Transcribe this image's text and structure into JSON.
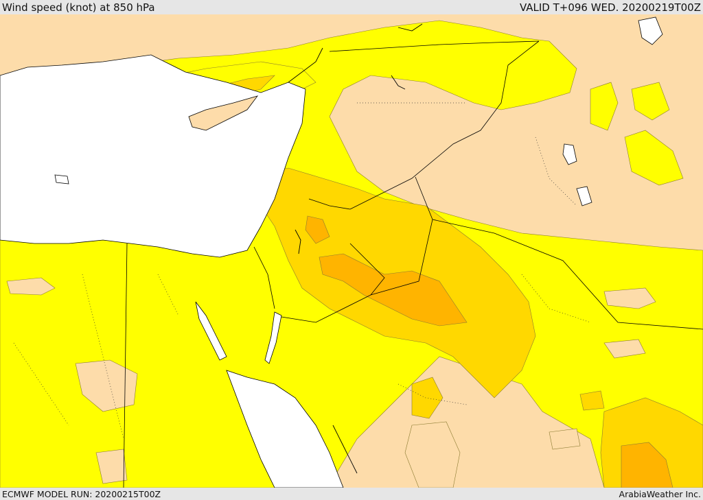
{
  "header": {
    "title": "Wind speed (knot) at 850 hPa",
    "valid": "VALID T+096 WED. 20200219T00Z"
  },
  "footer": {
    "model_run": "ECMWF MODEL RUN: 20200215T00Z",
    "provider": "ArabiaWeather Inc."
  },
  "colors": {
    "land_low": "#fddcaa",
    "band_10_15": "#ffff00",
    "band_15_20": "#ffd800",
    "band_20_25": "#ffb400",
    "sea": "#ffffff",
    "boundary": "#000000"
  }
}
